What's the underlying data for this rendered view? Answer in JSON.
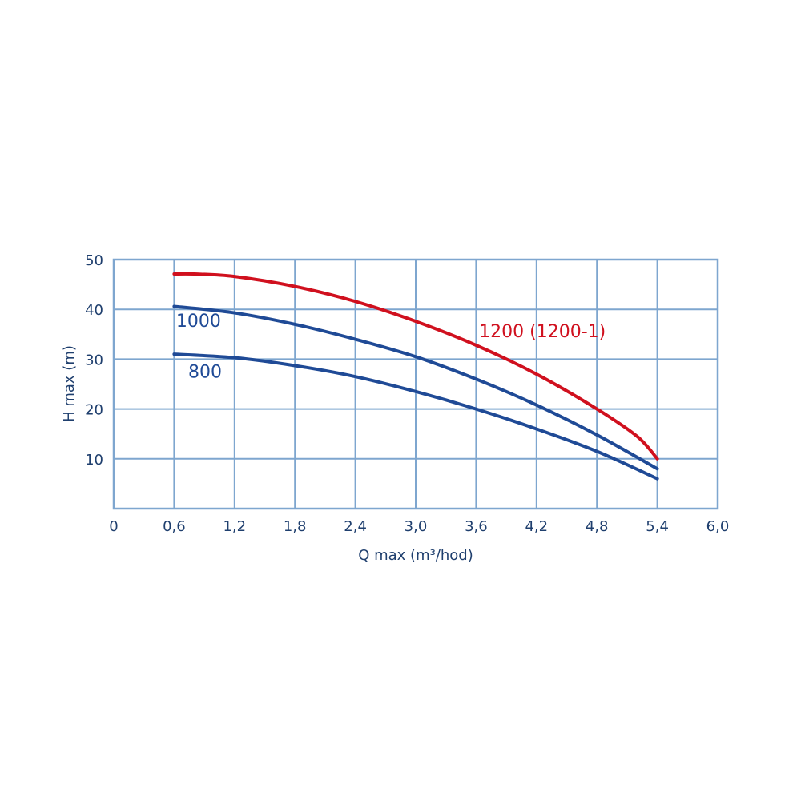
{
  "chart_data": {
    "type": "line",
    "xlabel": "Q max (m³/hod)",
    "ylabel": "H max (m)",
    "xlim": [
      0,
      6.0
    ],
    "ylim": [
      0,
      50
    ],
    "x_ticks": [
      0,
      0.6,
      1.2,
      1.8,
      2.4,
      3.0,
      3.6,
      4.2,
      4.8,
      5.4,
      6.0
    ],
    "x_tick_labels": [
      "0",
      "0,6",
      "1,2",
      "1,8",
      "2,4",
      "3,0",
      "3,6",
      "4,2",
      "4,8",
      "5,4",
      "6,0"
    ],
    "y_ticks": [
      10,
      20,
      30,
      40,
      50
    ],
    "y_tick_labels": [
      "10",
      "20",
      "30",
      "40",
      "50"
    ],
    "grid": true,
    "colors": {
      "grid": "#7ea6cf",
      "axis_text": "#1f3f6e",
      "blue_series": "#1f4a96",
      "red_series": "#d0101e"
    },
    "series": [
      {
        "name": "1200 (1200-1)",
        "color": "#d0101e",
        "x": [
          0.6,
          0.8,
          1.2,
          1.8,
          2.4,
          3.0,
          3.6,
          4.2,
          4.8,
          5.2,
          5.4
        ],
        "y": [
          47.1,
          47.1,
          46.6,
          44.6,
          41.6,
          37.6,
          32.8,
          27.0,
          20.0,
          14.5,
          10.0
        ]
      },
      {
        "name": "1000",
        "color": "#1f4a96",
        "x": [
          0.6,
          1.2,
          1.8,
          2.4,
          3.0,
          3.6,
          4.2,
          4.8,
          5.4
        ],
        "y": [
          40.6,
          39.3,
          37.0,
          34.0,
          30.5,
          26.0,
          20.8,
          14.8,
          8.0
        ]
      },
      {
        "name": "800",
        "color": "#1f4a96",
        "x": [
          0.6,
          1.2,
          1.8,
          2.4,
          3.0,
          3.6,
          4.2,
          4.8,
          5.4
        ],
        "y": [
          31.0,
          30.3,
          28.7,
          26.5,
          23.5,
          20.0,
          16.0,
          11.5,
          6.0
        ]
      }
    ],
    "annotations": [
      {
        "text": "1200 (1200-1)",
        "x": 3.63,
        "y": 34.4,
        "color": "#d0101e"
      },
      {
        "text": "1000",
        "x": 0.62,
        "y": 36.5,
        "color": "#1f4a96"
      },
      {
        "text": "800",
        "x": 0.74,
        "y": 26.3,
        "color": "#1f4a96"
      }
    ]
  }
}
